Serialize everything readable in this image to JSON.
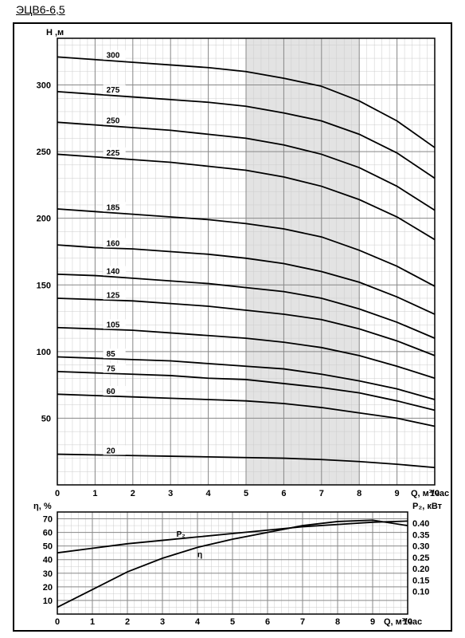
{
  "title": "ЭЦВ6-6,5",
  "colors": {
    "background": "#ffffff",
    "frame_border": "#000000",
    "grid_minor": "#cccccc",
    "grid_major": "#888888",
    "curve": "#000000",
    "shaded_band": "#d0d0d0",
    "text": "#000000"
  },
  "main_chart": {
    "type": "line",
    "x": {
      "label": "Q, м³/час",
      "min": 0,
      "max": 10,
      "major_step": 1,
      "minor_step": 0.2
    },
    "y": {
      "label": "H ,м",
      "min": 0,
      "max": 335,
      "major_step": 50,
      "minor_divs_per_major": 5
    },
    "shaded_x_range": [
      5,
      8
    ],
    "curve_line_width": 1.8,
    "label_fontsize": 10,
    "curves": [
      {
        "label": "300",
        "x": [
          0,
          1,
          2,
          3,
          4,
          5,
          6,
          7,
          8,
          9,
          10
        ],
        "y": [
          321,
          319,
          317,
          315,
          313,
          310,
          305,
          299,
          288,
          273,
          253
        ]
      },
      {
        "label": "275",
        "x": [
          0,
          1,
          2,
          3,
          4,
          5,
          6,
          7,
          8,
          9,
          10
        ],
        "y": [
          295,
          293,
          291,
          289,
          287,
          284,
          279,
          273,
          263,
          249,
          230
        ]
      },
      {
        "label": "250",
        "x": [
          0,
          1,
          2,
          3,
          4,
          5,
          6,
          7,
          8,
          9,
          10
        ],
        "y": [
          272,
          270,
          268,
          266,
          263,
          260,
          255,
          248,
          238,
          224,
          206
        ]
      },
      {
        "label": "225",
        "x": [
          0,
          1,
          2,
          3,
          4,
          5,
          6,
          7,
          8,
          9,
          10
        ],
        "y": [
          248,
          246,
          244,
          242,
          239,
          236,
          231,
          224,
          214,
          201,
          184
        ]
      },
      {
        "label": "185",
        "x": [
          0,
          1,
          2,
          3,
          4,
          5,
          6,
          7,
          8,
          9,
          10
        ],
        "y": [
          207,
          205,
          203,
          201,
          199,
          196,
          192,
          186,
          176,
          164,
          149
        ]
      },
      {
        "label": "160",
        "x": [
          0,
          1,
          2,
          3,
          4,
          5,
          6,
          7,
          8,
          9,
          10
        ],
        "y": [
          180,
          178,
          177,
          175,
          173,
          170,
          166,
          160,
          152,
          141,
          128
        ]
      },
      {
        "label": "140",
        "x": [
          0,
          1,
          2,
          3,
          4,
          5,
          6,
          7,
          8,
          9,
          10
        ],
        "y": [
          158,
          157,
          155,
          153,
          151,
          148,
          145,
          140,
          132,
          122,
          110
        ]
      },
      {
        "label": "125",
        "x": [
          0,
          1,
          2,
          3,
          4,
          5,
          6,
          7,
          8,
          9,
          10
        ],
        "y": [
          140,
          139,
          138,
          136,
          134,
          131,
          128,
          124,
          117,
          108,
          97
        ]
      },
      {
        "label": "105",
        "x": [
          0,
          1,
          2,
          3,
          4,
          5,
          6,
          7,
          8,
          9,
          10
        ],
        "y": [
          118,
          117,
          116,
          114,
          112,
          110,
          107,
          103,
          97,
          89,
          80
        ]
      },
      {
        "label": "85",
        "x": [
          0,
          1,
          2,
          3,
          4,
          5,
          6,
          7,
          8,
          9,
          10
        ],
        "y": [
          96,
          95,
          94,
          93,
          91,
          89,
          87,
          83,
          78,
          72,
          64
        ]
      },
      {
        "label": "75",
        "x": [
          0,
          1,
          2,
          3,
          4,
          5,
          6,
          7,
          8,
          9,
          10
        ],
        "y": [
          85,
          84,
          83,
          82,
          80,
          79,
          76,
          73,
          69,
          63,
          56
        ]
      },
      {
        "label": "60",
        "x": [
          0,
          1,
          2,
          3,
          4,
          5,
          6,
          7,
          8,
          9,
          10
        ],
        "y": [
          68,
          67,
          66,
          65,
          64,
          63,
          61,
          58,
          54,
          50,
          44
        ]
      },
      {
        "label": "20",
        "x": [
          0,
          1,
          2,
          3,
          4,
          5,
          6,
          7,
          8,
          9,
          10
        ],
        "y": [
          23,
          22.5,
          22,
          21.5,
          21,
          20.5,
          20,
          19,
          17.5,
          15.5,
          13
        ]
      }
    ]
  },
  "lower_chart": {
    "type": "line",
    "x": {
      "label": "Q, м³/час",
      "min": 0,
      "max": 10,
      "major_step": 1,
      "minor_step": 0.2
    },
    "y_left": {
      "label": "η, %",
      "min": 0,
      "max": 75,
      "ticks": [
        10,
        20,
        30,
        40,
        50,
        60,
        70
      ]
    },
    "y_right": {
      "label": "P₂, кВт",
      "min": 0,
      "max": 0.45,
      "ticks": [
        0.1,
        0.15,
        0.2,
        0.25,
        0.3,
        0.35,
        0.4
      ]
    },
    "curve_line_width": 1.8,
    "curves": [
      {
        "name": "P2",
        "label": "P₂",
        "axis": "right",
        "x": [
          0,
          1,
          2,
          3,
          4,
          5,
          6,
          7,
          8,
          9,
          10
        ],
        "y": [
          0.27,
          0.29,
          0.31,
          0.325,
          0.34,
          0.355,
          0.37,
          0.385,
          0.395,
          0.405,
          0.41
        ]
      },
      {
        "name": "eta",
        "label": "η",
        "axis": "left",
        "x": [
          0,
          1,
          2,
          3,
          4,
          5,
          6,
          7,
          8,
          9,
          10
        ],
        "y": [
          5,
          18,
          31,
          41,
          49,
          55,
          60,
          65,
          68,
          69,
          65
        ]
      }
    ]
  }
}
